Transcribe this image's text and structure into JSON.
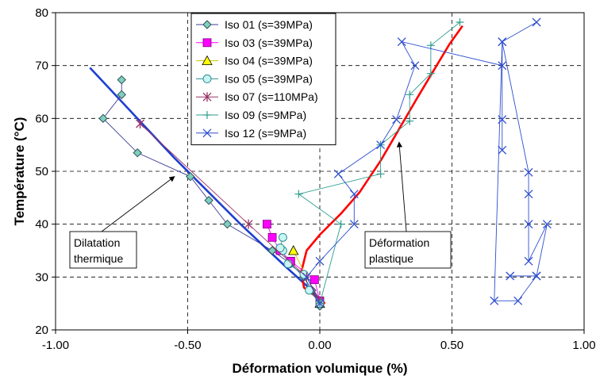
{
  "chart_data": {
    "type": "scatter",
    "xlabel": "Déformation volumique (%)",
    "ylabel": "Température (°C)",
    "xlim": [
      -1.0,
      1.0
    ],
    "ylim": [
      20,
      80
    ],
    "x_ticks": [
      "-1.00",
      "-0.50",
      "0.00",
      "0.50",
      "1.00"
    ],
    "x_tick_values": [
      -1.0,
      -0.5,
      0.0,
      0.5,
      1.0
    ],
    "y_ticks": [
      "20",
      "30",
      "40",
      "50",
      "60",
      "70",
      "80"
    ],
    "y_tick_values": [
      20,
      30,
      40,
      50,
      60,
      70,
      80
    ],
    "grid": "dashed",
    "legend_position": "top-center",
    "series": [
      {
        "name": "Iso 01 (s=39MPa)",
        "marker": "diamond",
        "color": "#3d3d99",
        "marker_fill": "#7fcfc0",
        "x": [
          0.0,
          -0.03,
          -0.06,
          -0.11,
          -0.18,
          -0.35,
          -0.42,
          -0.49,
          -0.69,
          -0.82,
          -0.75,
          -0.75
        ],
        "y": [
          24.5,
          27.5,
          30.0,
          32.5,
          35.0,
          40.0,
          44.5,
          49.0,
          53.5,
          60.0,
          64.5,
          67.3
        ]
      },
      {
        "name": "Iso 03 (s=39MPa)",
        "marker": "square",
        "color": "#ff00ff",
        "marker_fill": "#ff00ff",
        "x": [
          0.0,
          -0.02,
          -0.11,
          -0.15,
          -0.18,
          -0.2
        ],
        "y": [
          25.5,
          29.5,
          33.0,
          35.0,
          37.5,
          40.0
        ]
      },
      {
        "name": "Iso 04 (s=39MPa)",
        "marker": "triangle",
        "color": "#c8c800",
        "marker_fill": "#ffff00",
        "x": [
          0.0,
          -0.1
        ],
        "y": [
          25.0,
          35.0
        ]
      },
      {
        "name": "Iso 05 (s=39MPa)",
        "marker": "circle",
        "color": "#2e8f8f",
        "marker_fill": "#c8f4f4",
        "x": [
          0.0,
          -0.04,
          -0.06,
          -0.12,
          -0.14,
          -0.15,
          -0.14
        ],
        "y": [
          25.0,
          27.5,
          30.5,
          32.5,
          35.0,
          35.5,
          37.5
        ]
      },
      {
        "name": "Iso 07 (s=110MPa)",
        "marker": "asterisk",
        "color": "#993366",
        "marker_fill": "#993366",
        "x": [
          0.0,
          -0.05,
          -0.27,
          -0.68
        ],
        "y": [
          25.5,
          30.0,
          40.0,
          59.0
        ]
      },
      {
        "name": "Iso 09 (s=9MPa)",
        "marker": "plus",
        "color": "#2e9e8e",
        "marker_fill": "#2e9e8e",
        "x": [
          0.0,
          0.08,
          -0.08,
          0.23,
          0.23,
          0.34,
          0.34,
          0.42,
          0.42,
          0.53
        ],
        "y": [
          25.0,
          40.0,
          45.7,
          49.5,
          55.0,
          59.5,
          64.5,
          68.5,
          73.8,
          78.2
        ]
      },
      {
        "name": "Iso 12 (s=9MPa)",
        "marker": "x",
        "color": "#2f4fd0",
        "marker_fill": "#2f4fd0",
        "x": [
          0.0,
          -0.05,
          0.0,
          0.13,
          0.13,
          0.07,
          0.23,
          0.29,
          0.36,
          0.31,
          0.69,
          0.69,
          0.69,
          0.69,
          0.79,
          0.79,
          0.79,
          0.79,
          0.86,
          0.82,
          0.72,
          0.82,
          0.75,
          0.66,
          0.69,
          0.82
        ],
        "y": [
          25.0,
          30.0,
          33.0,
          40.0,
          45.7,
          49.5,
          55.0,
          59.8,
          70.0,
          74.5,
          70.0,
          59.8,
          54.0,
          74.5,
          49.8,
          45.7,
          40.0,
          33.0,
          40.0,
          30.2,
          30.2,
          30.2,
          25.5,
          25.5,
          74.5,
          78.2
        ]
      }
    ],
    "trend_lines": [
      {
        "color": "#1f3fd0",
        "x": [
          -0.87,
          -0.55,
          -0.3,
          -0.13,
          -0.02,
          0.01
        ],
        "y": [
          69.6,
          52.5,
          40.0,
          32.0,
          27.0,
          25.0
        ]
      },
      {
        "color": "#ff0000",
        "x": [
          0.02,
          -0.06,
          -0.07,
          -0.05,
          0.0,
          0.08,
          0.15,
          0.23,
          0.3,
          0.37,
          0.43,
          0.49,
          0.54
        ],
        "y": [
          25.0,
          28.0,
          31.0,
          35.0,
          38.0,
          42.0,
          46.0,
          52.0,
          58.0,
          64.0,
          69.0,
          74.0,
          77.5
        ]
      }
    ],
    "annotations": [
      {
        "line1": "Dilatation",
        "line2": "thermique",
        "arrow_to": [
          -0.55,
          49.0
        ]
      },
      {
        "line1": "Déformation",
        "line2": "plastique",
        "arrow_to": [
          0.3,
          55.5
        ]
      }
    ]
  }
}
